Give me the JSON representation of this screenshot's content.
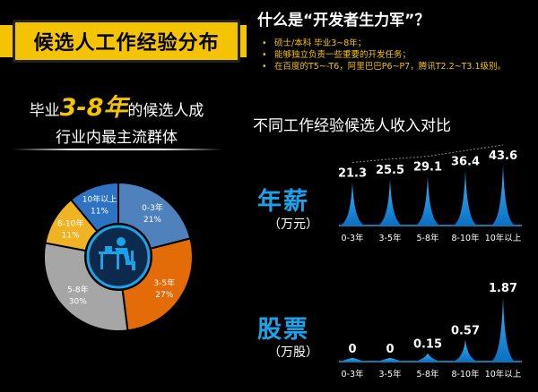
{
  "banner": {
    "title": "候选人工作经验分布"
  },
  "intro": {
    "question": "什么是“开发者生力军”？",
    "bullets": [
      "硕士/本科 毕业3~8年；",
      "能够独立负责一些重要的开发任务；",
      "在百度的T5~-T6，阿里巴巴P6~P7，腾讯T2.2~T3.1级别。"
    ]
  },
  "lead": {
    "pre": "毕业",
    "highlight": "3-8年",
    "post": "的候选人成",
    "line2": "行业内最主流群体"
  },
  "comparison_title": "不同工作经验候选人收入对比",
  "sections": {
    "salary": {
      "title": "年薪",
      "unit": "（万元）"
    },
    "stock": {
      "title": "股票",
      "unit": "（万股）"
    }
  },
  "colors": {
    "accent": "#f5c400",
    "blue": "#1aa3e8"
  },
  "chart_data": [
    {
      "type": "pie",
      "variant": "donut",
      "center_icon": "person-at-desk-icon",
      "categories": [
        "0-3年",
        "3-5年",
        "5-8年",
        "8-10年",
        "10年以上"
      ],
      "values": [
        21,
        27,
        30,
        11,
        11
      ],
      "labels": [
        "21%",
        "27%",
        "30%",
        "11%",
        "11%"
      ],
      "colors": [
        "#4f81bd",
        "#e36c09",
        "#a6a6a6",
        "#f0b323",
        "#2e72c4"
      ]
    },
    {
      "type": "bar",
      "style": "spike",
      "categories": [
        "0-3年",
        "3-5年",
        "5-8年",
        "8-10年",
        "10年以上"
      ],
      "values": [
        21.3,
        25.5,
        29.1,
        36.4,
        43.6
      ],
      "labels": [
        "21.3",
        "25.5",
        "29.1",
        "36.4",
        "43.6"
      ],
      "ylim": [
        0,
        43.6
      ]
    },
    {
      "type": "bar",
      "style": "spike",
      "categories": [
        "0-3年",
        "3-5年",
        "5-8年",
        "8-10年",
        "10年以上"
      ],
      "values": [
        0,
        0,
        0.15,
        0.57,
        1.87
      ],
      "labels": [
        "0",
        "0",
        "0.15",
        "0.57",
        "1.87"
      ],
      "ylim": [
        0,
        1.87
      ]
    }
  ]
}
